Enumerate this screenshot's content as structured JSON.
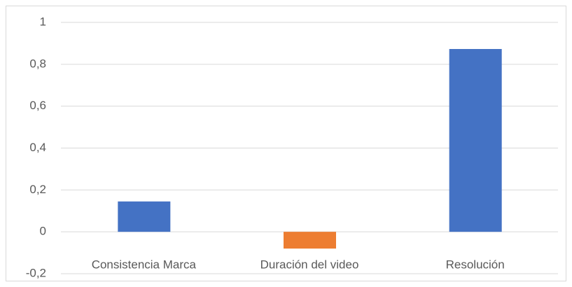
{
  "chart_data": {
    "type": "bar",
    "categories": [
      "Consistencia Marca",
      "Duración del video",
      "Resolución"
    ],
    "values": [
      0.145,
      -0.08,
      0.873
    ],
    "colors": [
      "#4472c4",
      "#ed7d31",
      "#4472c4"
    ],
    "ylim": [
      -0.2,
      1
    ],
    "yticks": [
      {
        "value": -0.2,
        "label": "-0,2"
      },
      0,
      {
        "value": 0.2,
        "label": "0,2"
      },
      {
        "value": 0.4,
        "label": "0,4"
      },
      {
        "value": 0.6,
        "label": "0,6"
      },
      {
        "value": 0.8,
        "label": "0,8"
      },
      1
    ],
    "grid": true
  }
}
